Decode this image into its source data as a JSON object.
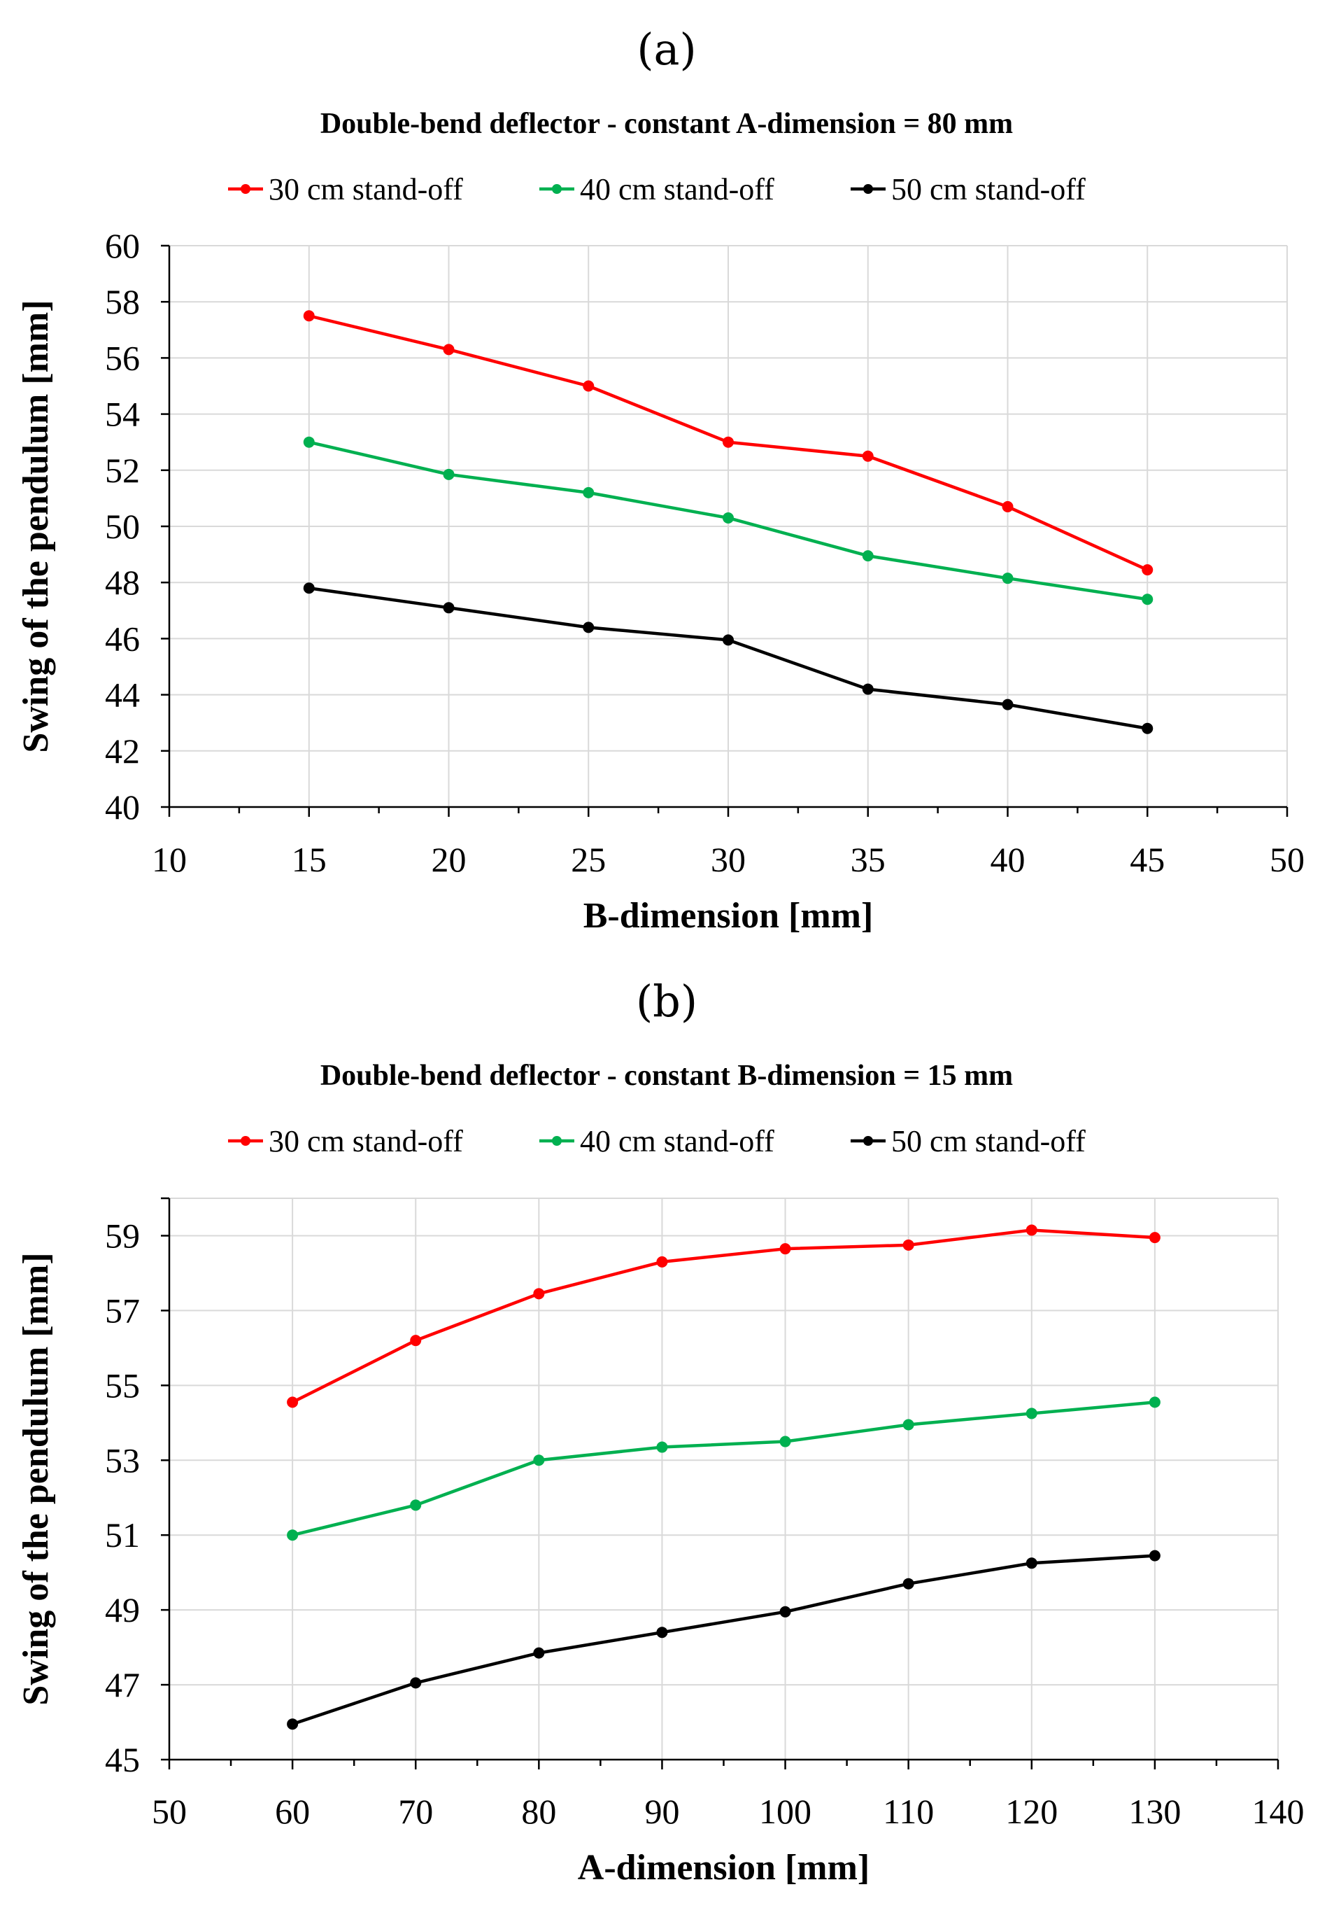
{
  "colors": {
    "red": "#ff0000",
    "green": "#00b050",
    "black": "#000000"
  },
  "chart_data": [
    {
      "type": "line",
      "panel_label": "(a)",
      "title": "Double-bend deflector - constant A-dimension = 80 mm",
      "xlabel": "B-dimension [mm]",
      "ylabel": "Swing of the pendulum [mm]",
      "xlim": [
        10,
        50
      ],
      "ylim": [
        40,
        60
      ],
      "xticks": [
        10,
        15,
        20,
        25,
        30,
        35,
        40,
        45,
        50
      ],
      "xticks_minor": [
        12.5,
        17.5,
        22.5,
        27.5,
        32.5,
        37.5,
        42.5,
        47.5
      ],
      "yticks": [
        40,
        42,
        44,
        46,
        48,
        50,
        52,
        54,
        56,
        58,
        60
      ],
      "x": [
        15,
        20,
        25,
        30,
        35,
        40,
        45
      ],
      "series": [
        {
          "name": "30 cm stand-off",
          "color": "#ff0000",
          "values": [
            57.5,
            56.3,
            55.0,
            53.0,
            52.5,
            50.7,
            48.45
          ]
        },
        {
          "name": "40 cm stand-off",
          "color": "#00b050",
          "values": [
            53.0,
            51.85,
            51.2,
            50.3,
            48.95,
            48.15,
            47.4
          ]
        },
        {
          "name": "50 cm stand-off",
          "color": "#000000",
          "values": [
            47.8,
            47.1,
            46.4,
            45.95,
            44.2,
            43.65,
            42.8
          ]
        }
      ]
    },
    {
      "type": "line",
      "panel_label": "(b)",
      "title": "Double-bend deflector - constant B-dimension = 15 mm",
      "xlabel": "A-dimension [mm]",
      "ylabel": "Swing of the pendulum [mm]",
      "xlim": [
        50,
        140
      ],
      "ylim": [
        45,
        60
      ],
      "xticks": [
        50,
        60,
        70,
        80,
        90,
        100,
        110,
        120,
        130,
        140
      ],
      "xticks_minor": [
        55,
        65,
        75,
        85,
        95,
        105,
        115,
        125,
        135
      ],
      "yticks": [
        45,
        47,
        49,
        51,
        53,
        55,
        57,
        59
      ],
      "x": [
        60,
        70,
        80,
        90,
        100,
        110,
        120,
        130
      ],
      "series": [
        {
          "name": "30 cm stand-off",
          "color": "#ff0000",
          "values": [
            54.55,
            56.2,
            57.45,
            58.3,
            58.65,
            58.75,
            59.15,
            58.95
          ]
        },
        {
          "name": "40 cm stand-off",
          "color": "#00b050",
          "values": [
            51.0,
            51.8,
            53.0,
            53.35,
            53.5,
            53.95,
            54.25,
            54.55
          ]
        },
        {
          "name": "50 cm stand-off",
          "color": "#000000",
          "values": [
            45.95,
            47.05,
            47.85,
            48.4,
            48.95,
            49.7,
            50.25,
            50.45
          ]
        }
      ]
    }
  ]
}
